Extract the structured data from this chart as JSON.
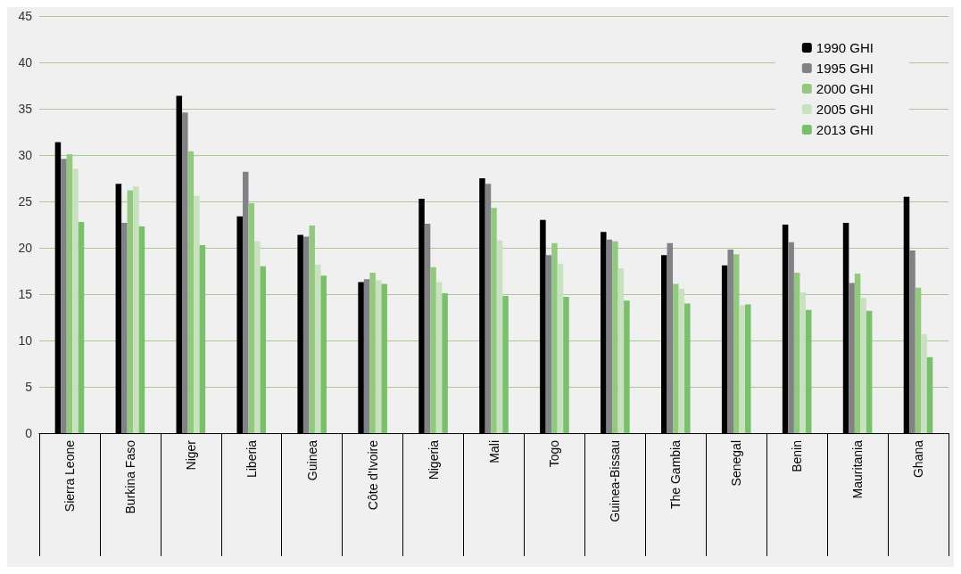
{
  "chart_data": {
    "type": "bar",
    "categories": [
      "Sierra Leone",
      "Burkina Faso",
      "Niger",
      "Liberia",
      "Guinea",
      "Côte d'Ivoire",
      "Nigeria",
      "Mali",
      "Togo",
      "Guinea-Bissau",
      "The Gambia",
      "Senegal",
      "Benin",
      "Mauritania",
      "Ghana"
    ],
    "series": [
      {
        "name": "1990 GHI",
        "color": "#000000",
        "values": [
          31.4,
          26.9,
          36.4,
          23.4,
          21.4,
          16.3,
          25.3,
          27.5,
          23.0,
          21.7,
          19.2,
          18.1,
          22.5,
          22.7,
          25.5
        ]
      },
      {
        "name": "1995 GHI",
        "color": "#808285",
        "values": [
          29.6,
          22.7,
          34.6,
          28.2,
          21.2,
          16.6,
          22.6,
          26.9,
          19.2,
          20.9,
          20.5,
          19.8,
          20.6,
          16.2,
          19.7
        ]
      },
      {
        "name": "2000 GHI",
        "color": "#93c97f",
        "values": [
          30.1,
          26.2,
          30.4,
          24.8,
          22.4,
          17.3,
          17.9,
          24.3,
          20.5,
          20.7,
          16.1,
          19.3,
          17.3,
          17.2,
          15.7
        ]
      },
      {
        "name": "2005 GHI",
        "color": "#c8e1bf",
        "values": [
          28.5,
          26.6,
          25.6,
          20.7,
          18.2,
          16.5,
          16.3,
          20.8,
          18.3,
          17.8,
          15.6,
          13.8,
          15.2,
          14.6,
          10.7
        ]
      },
      {
        "name": "2013 GHI",
        "color": "#7abf6b",
        "values": [
          22.8,
          22.3,
          20.3,
          18.0,
          17.0,
          16.1,
          15.1,
          14.8,
          14.7,
          14.3,
          14.0,
          13.9,
          13.3,
          13.2,
          8.2
        ]
      }
    ],
    "ylim": [
      0,
      45
    ],
    "yticks": [
      0,
      5,
      10,
      15,
      20,
      25,
      30,
      35,
      40,
      45
    ],
    "grid": "y",
    "legend": "top right"
  }
}
